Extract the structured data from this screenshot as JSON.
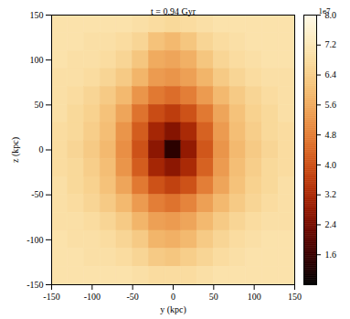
{
  "chart_data": {
    "type": "heatmap",
    "title": "t = 0.94 Gyr",
    "xlabel": "y (kpc)",
    "ylabel": "z (kpc)",
    "xlim": [
      -150,
      150
    ],
    "ylim": [
      -150,
      150
    ],
    "xticks": [
      -150,
      -100,
      -50,
      0,
      50,
      100,
      150
    ],
    "yticks": [
      -150,
      -100,
      -50,
      0,
      50,
      100,
      150
    ],
    "x_edges": [
      -150,
      -130,
      -110,
      -90,
      -70,
      -50,
      -30,
      -10,
      10,
      30,
      50,
      70,
      90,
      110,
      130,
      150
    ],
    "y_edges": [
      150,
      130,
      110,
      90,
      70,
      50,
      30,
      10,
      -10,
      -30,
      -50,
      -70,
      -90,
      -110,
      -130,
      -150
    ],
    "values": [
      [
        7.0,
        7.0,
        7.0,
        7.0,
        7.0,
        6.9,
        6.8,
        6.7,
        6.8,
        6.9,
        7.0,
        7.0,
        7.0,
        7.0,
        7.0
      ],
      [
        7.0,
        7.0,
        6.9,
        6.9,
        6.8,
        6.6,
        6.1,
        5.9,
        6.2,
        6.6,
        6.8,
        6.9,
        7.0,
        7.0,
        7.0
      ],
      [
        7.0,
        6.9,
        6.9,
        6.8,
        6.6,
        6.2,
        5.6,
        5.5,
        5.7,
        6.2,
        6.6,
        6.8,
        6.9,
        7.0,
        7.0
      ],
      [
        6.9,
        6.9,
        6.8,
        6.6,
        6.3,
        5.8,
        5.3,
        5.2,
        5.4,
        5.8,
        6.3,
        6.6,
        6.8,
        6.9,
        6.9
      ],
      [
        6.9,
        6.8,
        6.6,
        6.3,
        5.9,
        5.2,
        4.7,
        4.5,
        4.8,
        5.3,
        5.9,
        6.3,
        6.6,
        6.8,
        6.9
      ],
      [
        6.9,
        6.7,
        6.5,
        6.1,
        5.5,
        4.6,
        3.9,
        3.6,
        4.0,
        4.7,
        5.5,
        6.1,
        6.5,
        6.7,
        6.9
      ],
      [
        6.8,
        6.7,
        6.4,
        6.0,
        5.2,
        4.2,
        3.1,
        2.6,
        3.2,
        4.3,
        5.3,
        6.0,
        6.4,
        6.7,
        6.8
      ],
      [
        6.8,
        6.6,
        6.3,
        5.9,
        5.1,
        4.0,
        2.7,
        1.4,
        2.8,
        4.1,
        5.2,
        5.9,
        6.3,
        6.6,
        6.8
      ],
      [
        6.8,
        6.7,
        6.4,
        6.0,
        5.2,
        4.2,
        3.1,
        2.7,
        3.2,
        4.3,
        5.3,
        6.0,
        6.4,
        6.7,
        6.8
      ],
      [
        6.9,
        6.7,
        6.5,
        6.1,
        5.5,
        4.7,
        4.0,
        3.7,
        4.0,
        4.8,
        5.5,
        6.1,
        6.5,
        6.7,
        6.9
      ],
      [
        6.9,
        6.8,
        6.6,
        6.3,
        5.9,
        5.3,
        4.8,
        4.6,
        4.9,
        5.4,
        5.9,
        6.3,
        6.6,
        6.8,
        6.9
      ],
      [
        6.9,
        6.9,
        6.8,
        6.6,
        6.3,
        5.8,
        5.4,
        5.3,
        5.5,
        5.9,
        6.3,
        6.6,
        6.8,
        6.9,
        6.9
      ],
      [
        7.0,
        6.9,
        6.9,
        6.8,
        6.6,
        6.3,
        5.8,
        5.7,
        5.9,
        6.3,
        6.6,
        6.8,
        6.9,
        7.0,
        7.0
      ],
      [
        7.0,
        7.0,
        6.9,
        6.9,
        6.8,
        6.6,
        6.3,
        6.2,
        6.4,
        6.6,
        6.8,
        6.9,
        7.0,
        7.0,
        7.0
      ],
      [
        7.0,
        7.0,
        7.0,
        7.0,
        7.0,
        6.9,
        6.8,
        6.8,
        6.8,
        6.9,
        7.0,
        7.0,
        7.0,
        7.0,
        7.0
      ]
    ],
    "colorbar": {
      "lim": [
        0.8,
        8.0
      ],
      "ticks": [
        1.6,
        2.4,
        3.2,
        {
          "value": 4.0,
          "label": "4.0"
        },
        4.8,
        5.6,
        6.4,
        7.2,
        {
          "value": 8.0,
          "label": "8.0"
        }
      ],
      "offset_label": "1e7"
    }
  }
}
